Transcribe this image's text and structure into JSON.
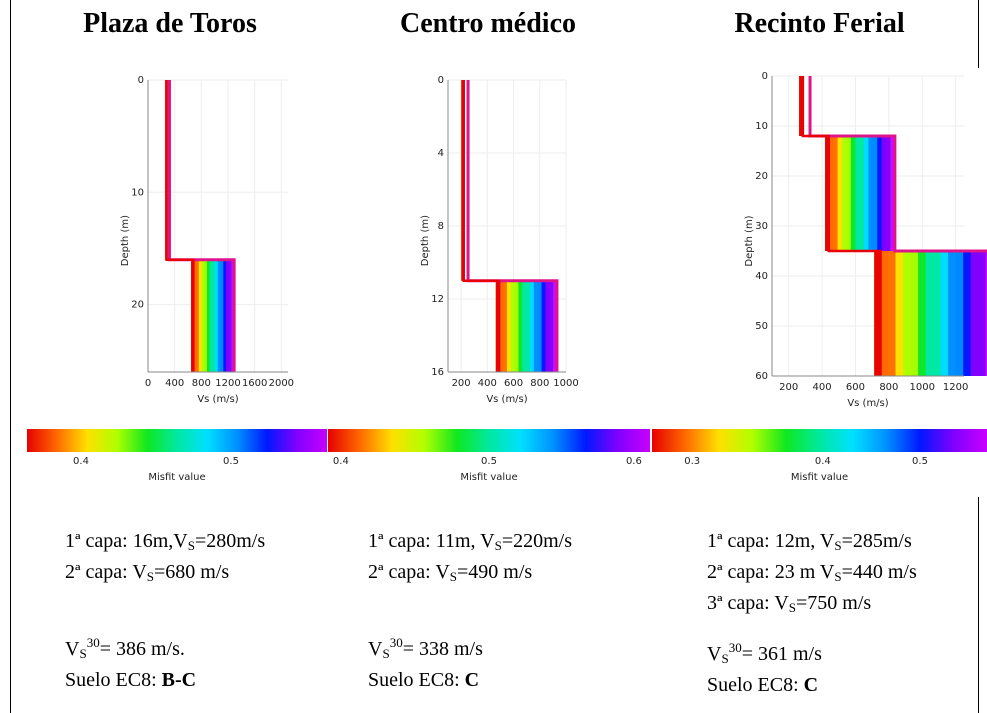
{
  "colors": {
    "colorbar_stops": [
      "#e60000",
      "#ff6a00",
      "#ffe000",
      "#b0ff00",
      "#10e820",
      "#00e8a0",
      "#00e0ff",
      "#0090ff",
      "#0018ff",
      "#8000ff",
      "#c800ff"
    ],
    "misfit_red": "#e8000b",
    "misfit_blue": "#1a10ff",
    "outline": "#e0138a"
  },
  "chart_data": [
    {
      "type": "line",
      "title": "Plaza de Toros",
      "xlabel": "Vs (m/s)",
      "ylabel": "Depth (m)",
      "xticks": [
        0,
        400,
        800,
        1200,
        1600,
        2000
      ],
      "yticks": [
        0,
        10,
        20
      ],
      "xlim": [
        0,
        2100
      ],
      "ylim": [
        0,
        26
      ],
      "y_inverted": true,
      "best_profile": {
        "vs": [
          280,
          280,
          680,
          680
        ],
        "depth": [
          0,
          16,
          16,
          26
        ]
      },
      "colorbar": {
        "label": "Misfit value",
        "ticks": [
          "0.4",
          "0.5"
        ],
        "range": [
          0.36,
          0.56
        ]
      }
    },
    {
      "type": "line",
      "title": "Centro médico",
      "xlabel": "Vs (m/s)",
      "ylabel": "Depth (m)",
      "xticks": [
        200,
        400,
        600,
        800,
        1000
      ],
      "yticks": [
        0,
        4,
        8,
        12,
        16
      ],
      "xlim": [
        100,
        1000
      ],
      "ylim": [
        0,
        16
      ],
      "y_inverted": true,
      "best_profile": {
        "vs": [
          220,
          220,
          490,
          490
        ],
        "depth": [
          0,
          11,
          11,
          16
        ]
      },
      "colorbar": {
        "label": "Misfit value",
        "ticks": [
          "0.4",
          "0.5",
          "0.6"
        ],
        "range": [
          0.4,
          0.62
        ]
      }
    },
    {
      "type": "line",
      "title": "Recinto Ferial",
      "xlabel": "Vs (m/s)",
      "ylabel": "Depth (m)",
      "xticks": [
        200,
        400,
        600,
        800,
        1000,
        1200
      ],
      "yticks": [
        0,
        10,
        20,
        30,
        40,
        50,
        60
      ],
      "xlim": [
        100,
        1250
      ],
      "ylim": [
        0,
        60
      ],
      "y_inverted": true,
      "best_profile": {
        "vs": [
          285,
          285,
          440,
          440,
          750,
          750
        ],
        "depth": [
          0,
          12,
          12,
          35,
          35,
          60
        ]
      },
      "colorbar": {
        "label": "Misfit value",
        "ticks": [
          "0.3",
          "0.4",
          "0.5"
        ],
        "range": [
          0.26,
          0.57
        ]
      }
    }
  ],
  "panels": [
    {
      "capa1_pre": "1ª capa: 16m,V",
      "capa1_post": "=280m/s",
      "capa2_pre": "2ª capa: V",
      "capa2_post": "=680 m/s",
      "vs30_post": "= 386 m/s.",
      "suelo_pre": "Suelo EC8: ",
      "suelo_val": "B-C"
    },
    {
      "capa1_pre": "1ª capa: 11m, V",
      "capa1_post": "=220m/s",
      "capa2_pre": "2ª capa: V",
      "capa2_post": "=490 m/s",
      "vs30_post": "= 338 m/s",
      "suelo_pre": "Suelo EC8: ",
      "suelo_val": "C"
    },
    {
      "capa1_pre": "1ª capa: 12m, V",
      "capa1_post": "=285m/s",
      "capa2_pre": "2ª capa: 23 m V",
      "capa2_post": "=440 m/s",
      "capa3_pre": "3ª capa:  V",
      "capa3_post": "=750 m/s",
      "vs30_post": "= 361 m/s",
      "suelo_pre": "Suelo EC8: ",
      "suelo_val": "C"
    }
  ],
  "symbols": {
    "v": "V",
    "s": "S",
    "sup30": "30"
  }
}
